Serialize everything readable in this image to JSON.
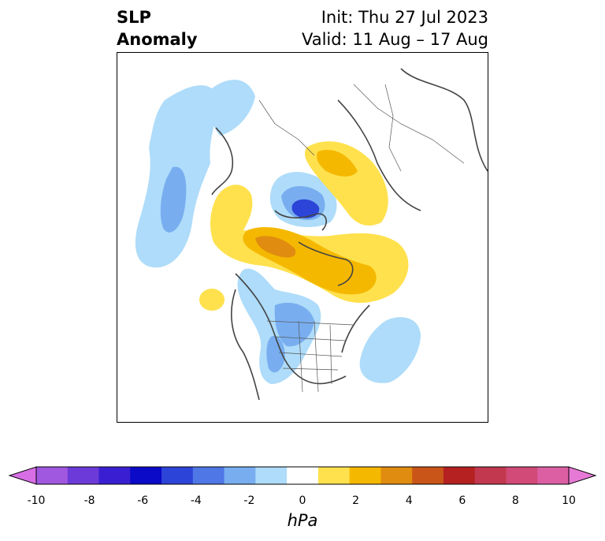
{
  "title": {
    "left_line1": "SLP",
    "left_line2": "Anomaly",
    "right_line1": "Init: Thu 27 Jul 2023",
    "right_line2": "Valid: 11 Aug – 17 Aug"
  },
  "colorbar": {
    "label": "hPa",
    "ticks": [
      "-10",
      "-8",
      "-6",
      "-4",
      "-2",
      "0",
      "2",
      "4",
      "6",
      "8",
      "10"
    ],
    "colors": [
      "#d86ee6",
      "#a158e0",
      "#6c3ad8",
      "#3a1ed2",
      "#0a0ac8",
      "#2d44d8",
      "#4f78e6",
      "#78aef0",
      "#aedcfa",
      "#ffffff",
      "#ffe14d",
      "#f5b800",
      "#e08c10",
      "#c95518",
      "#b52121",
      "#c2384f",
      "#d14a78",
      "#dc5fa3",
      "#e779d6"
    ]
  },
  "map": {
    "projection": "north-polar-stereographic",
    "features": [
      "coastlines",
      "country-borders",
      "us-state-borders"
    ]
  }
}
